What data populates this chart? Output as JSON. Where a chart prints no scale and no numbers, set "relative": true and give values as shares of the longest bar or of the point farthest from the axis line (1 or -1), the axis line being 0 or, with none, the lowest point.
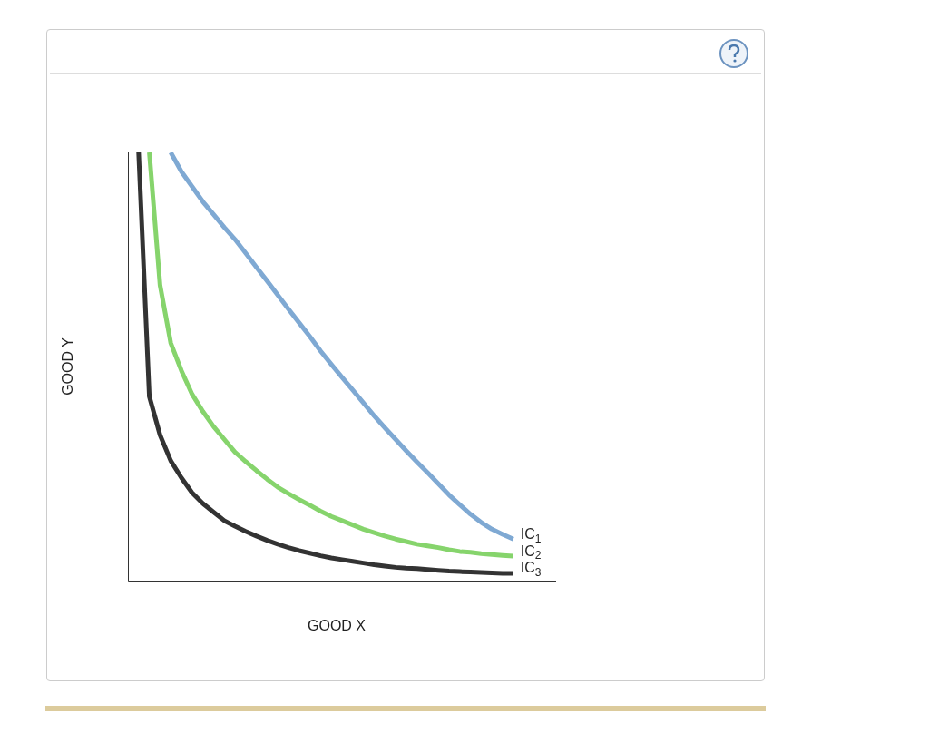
{
  "chart_data": {
    "type": "line",
    "relative": true,
    "xlabel": "GOOD X",
    "ylabel": "GOOD Y",
    "legend": false,
    "marker": "none",
    "line_style": "solid",
    "categories": [
      null,
      null,
      null,
      null,
      null,
      null,
      null,
      null,
      null,
      null,
      null,
      null,
      null,
      null,
      null,
      null,
      null,
      null,
      null,
      null,
      null,
      null,
      null,
      null,
      null,
      null,
      null,
      null,
      null,
      null,
      null,
      null,
      null,
      null,
      null,
      null,
      null,
      null,
      null,
      null,
      null
    ],
    "series": [
      {
        "name": "IC$_{1}$",
        "color": "#7fa9d3",
        "values": [
          null,
          null,
          null,
          null,
          1.0,
          0.955,
          0.92,
          0.885,
          0.855,
          0.825,
          0.797,
          0.765,
          0.732,
          0.7,
          0.667,
          0.634,
          0.602,
          0.57,
          0.536,
          0.505,
          0.475,
          0.445,
          0.415,
          0.385,
          0.357,
          0.33,
          0.303,
          0.277,
          0.252,
          0.226,
          0.2,
          0.177,
          0.155,
          0.136,
          0.12,
          0.108,
          0.097,
          null,
          null,
          null,
          null
        ]
      },
      {
        "name": "IC$_{2}$",
        "color": "#86d46c",
        "values": [
          null,
          null,
          1.0,
          0.69,
          0.555,
          0.49,
          0.435,
          0.395,
          0.36,
          0.33,
          0.3,
          0.278,
          0.257,
          0.237,
          0.218,
          0.203,
          0.189,
          0.176,
          0.162,
          0.15,
          0.14,
          0.13,
          0.12,
          0.112,
          0.104,
          0.097,
          0.091,
          0.085,
          0.081,
          0.077,
          0.072,
          0.068,
          0.066,
          0.063,
          0.061,
          0.059,
          0.057,
          null,
          null,
          null,
          null
        ]
      },
      {
        "name": "IC$_{3}$",
        "color": "#333333",
        "values": [
          null,
          1.0,
          0.43,
          0.34,
          0.28,
          0.24,
          0.205,
          0.18,
          0.16,
          0.14,
          0.127,
          0.115,
          0.104,
          0.094,
          0.085,
          0.077,
          0.07,
          0.064,
          0.058,
          0.053,
          0.049,
          0.045,
          0.041,
          0.037,
          0.034,
          0.031,
          0.029,
          0.028,
          0.026,
          0.024,
          0.022,
          0.021,
          0.02,
          0.019,
          0.018,
          0.017,
          0.017,
          null,
          null,
          null,
          null
        ]
      }
    ]
  }
}
